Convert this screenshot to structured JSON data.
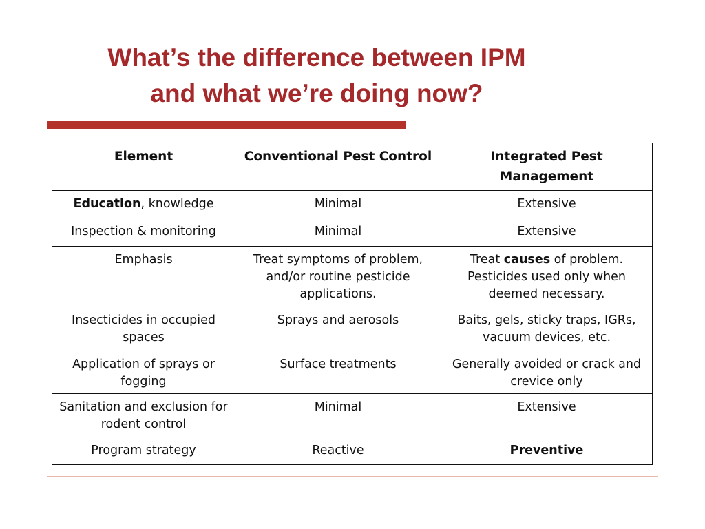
{
  "colors": {
    "title": "#a5282a",
    "accent_rule": "#b3322a",
    "thin_rule": "#c0392b"
  },
  "title": {
    "line1": "What’s the difference between IPM",
    "line2": "and what we’re doing now?"
  },
  "table": {
    "headers": {
      "element": "Element",
      "conventional": "Conventional Pest Control",
      "ipm": "Integrated Pest Management"
    },
    "rows": [
      {
        "element_bold": "Education",
        "element_rest": ", knowledge",
        "conventional": "Minimal",
        "ipm": "Extensive"
      },
      {
        "element": "Inspection & monitoring",
        "conventional": "Minimal",
        "ipm": "Extensive"
      },
      {
        "element": "Emphasis",
        "conventional_pre": "Treat ",
        "conventional_underline": "symptoms",
        "conventional_post": " of problem, and/or routine pesticide applications.",
        "ipm_pre": "Treat ",
        "ipm_underline_bold": "causes",
        "ipm_post": " of problem. Pesticides used only when deemed necessary."
      },
      {
        "element": "Insecticides in occupied spaces",
        "conventional": "Sprays and aerosols",
        "ipm": "Baits, gels, sticky traps, IGRs, vacuum devices, etc."
      },
      {
        "element": "Application of sprays or fogging",
        "conventional": "Surface treatments",
        "ipm": "Generally avoided or crack and crevice only"
      },
      {
        "element": "Sanitation and exclusion for rodent control",
        "conventional": "Minimal",
        "ipm": "Extensive"
      },
      {
        "element": "Program strategy",
        "conventional": "Reactive",
        "ipm": "Preventive"
      }
    ]
  }
}
